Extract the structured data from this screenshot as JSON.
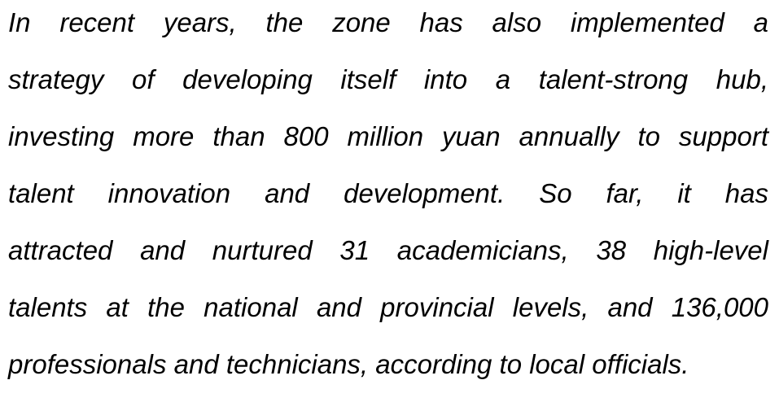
{
  "document": {
    "lines": [
      "In recent years, the zone has also implemented a",
      "strategy of developing itself into a talent-strong hub,",
      "investing more than 800 million yuan annually to support",
      "talent innovation and development. So far, it has",
      "attracted and nurtured 31 academicians, 38 high-level",
      "talents at the national and provincial levels, and 136,000",
      "professionals and technicians, according to local officials."
    ]
  }
}
